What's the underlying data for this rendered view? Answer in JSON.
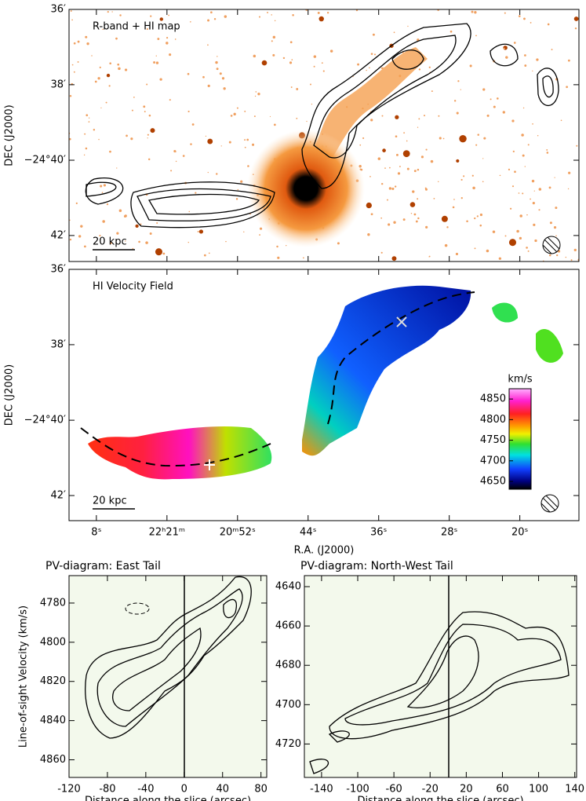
{
  "chart_data": [
    {
      "type": "image",
      "title": "R-band + HI map",
      "scale_label": "20 kpc",
      "ylabel": "DEC (J2000)",
      "xlim": [
        71.1,
        13.3
      ],
      "ylim": [
        -24.6,
        -24.7115
      ],
      "yticks": [
        {
          "value": -24.6,
          "label": "36′"
        },
        {
          "value": -24.6333,
          "label": "38′"
        },
        {
          "value": -24.6667,
          "label": "−24°40′"
        },
        {
          "value": -24.7,
          "label": "42′"
        }
      ]
    },
    {
      "type": "image",
      "title": "HI Velocity Field",
      "scale_label": "20 kpc",
      "ylabel": "DEC (J2000)",
      "xlabel": "R.A. (J2000)",
      "xlim": [
        71.1,
        13.3
      ],
      "ylim": [
        -24.6,
        -24.7111
      ],
      "xticks": [
        {
          "value": 68,
          "label": "8ˢ"
        },
        {
          "value": 60,
          "label": "22ʰ21ᵐ"
        },
        {
          "value": 52,
          "label": "20ᵐ52ˢ"
        },
        {
          "value": 44,
          "label": "44ˢ"
        },
        {
          "value": 36,
          "label": "36ˢ"
        },
        {
          "value": 28,
          "label": "28ˢ"
        },
        {
          "value": 20,
          "label": "20ˢ"
        }
      ],
      "yticks": [
        {
          "value": -24.6,
          "label": "36′"
        },
        {
          "value": -24.6333,
          "label": "38′"
        },
        {
          "value": -24.6667,
          "label": "−24°40′"
        },
        {
          "value": -24.7,
          "label": "42′"
        }
      ],
      "colorbar": {
        "label": "km/s",
        "lim": [
          4875,
          4631
        ],
        "ticks": [
          4850,
          4800,
          4750,
          4700,
          4650
        ]
      }
    },
    {
      "type": "contour",
      "title": "PV-diagram: East Tail",
      "xlabel": "Distance along the slice (arcsec)",
      "ylabel": "Line-of-sight Velocity (km/s)",
      "xlim": [
        -120,
        86
      ],
      "ylim": [
        4766,
        4869
      ],
      "xticks": [
        -120,
        -80,
        -40,
        0,
        40,
        80
      ],
      "yticks": [
        4780,
        4800,
        4820,
        4840,
        4860
      ]
    },
    {
      "type": "contour",
      "title": "PV-diagram: North-West Tail",
      "xlabel": "Distance along the slice (arcsec)",
      "xlim": [
        -159,
        142
      ],
      "ylim": [
        4634.4,
        4737
      ],
      "xticks": [
        -140,
        -100,
        -60,
        -20,
        20,
        60,
        100,
        140
      ],
      "yticks": [
        4640,
        4660,
        4680,
        4700,
        4720
      ]
    }
  ]
}
